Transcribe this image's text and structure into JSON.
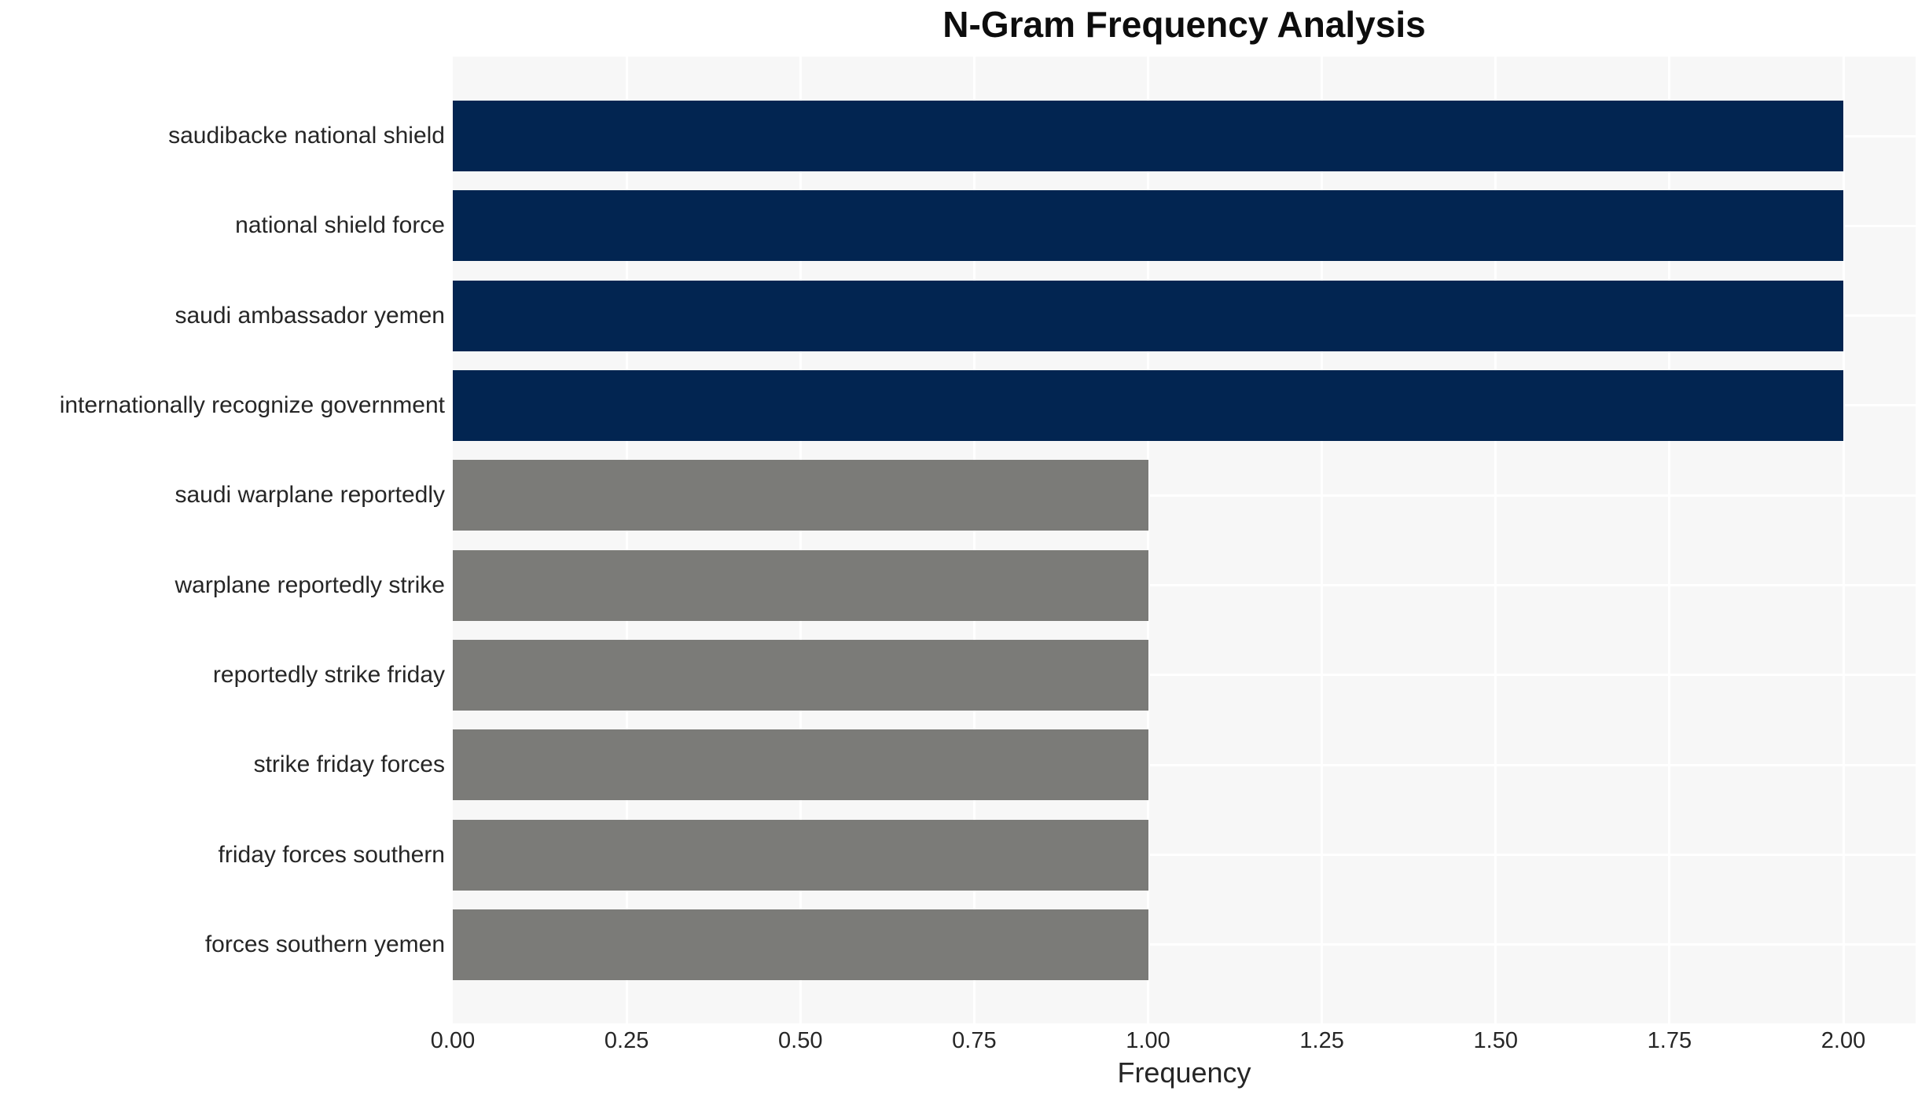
{
  "chart_data": {
    "type": "bar",
    "orientation": "horizontal",
    "title": "N-Gram Frequency Analysis",
    "xlabel": "Frequency",
    "ylabel": "",
    "categories": [
      "saudibacke national shield",
      "national shield force",
      "saudi ambassador yemen",
      "internationally recognize government",
      "saudi warplane reportedly",
      "warplane reportedly strike",
      "reportedly strike friday",
      "strike friday forces",
      "friday forces southern",
      "forces southern yemen"
    ],
    "values": [
      2,
      2,
      2,
      2,
      1,
      1,
      1,
      1,
      1,
      1
    ],
    "bar_colors": [
      "#022551",
      "#022551",
      "#022551",
      "#022551",
      "#7b7b78",
      "#7b7b78",
      "#7b7b78",
      "#7b7b78",
      "#7b7b78",
      "#7b7b78"
    ],
    "xlim": [
      0,
      2.104
    ],
    "xticks": [
      0,
      0.25,
      0.5,
      0.75,
      1.0,
      1.25,
      1.5,
      1.75,
      2.0
    ],
    "xtick_labels": [
      "0.00",
      "0.25",
      "0.50",
      "0.75",
      "1.00",
      "1.25",
      "1.50",
      "1.75",
      "2.00"
    ],
    "grid": true,
    "legend": false,
    "colors": {
      "high_frequency_bar": "#022551",
      "low_frequency_bar": "#7b7b78",
      "plot_background": "#f7f7f7",
      "gridline": "#ffffff",
      "text": "#262626",
      "figure_background": "#ffffff"
    }
  }
}
